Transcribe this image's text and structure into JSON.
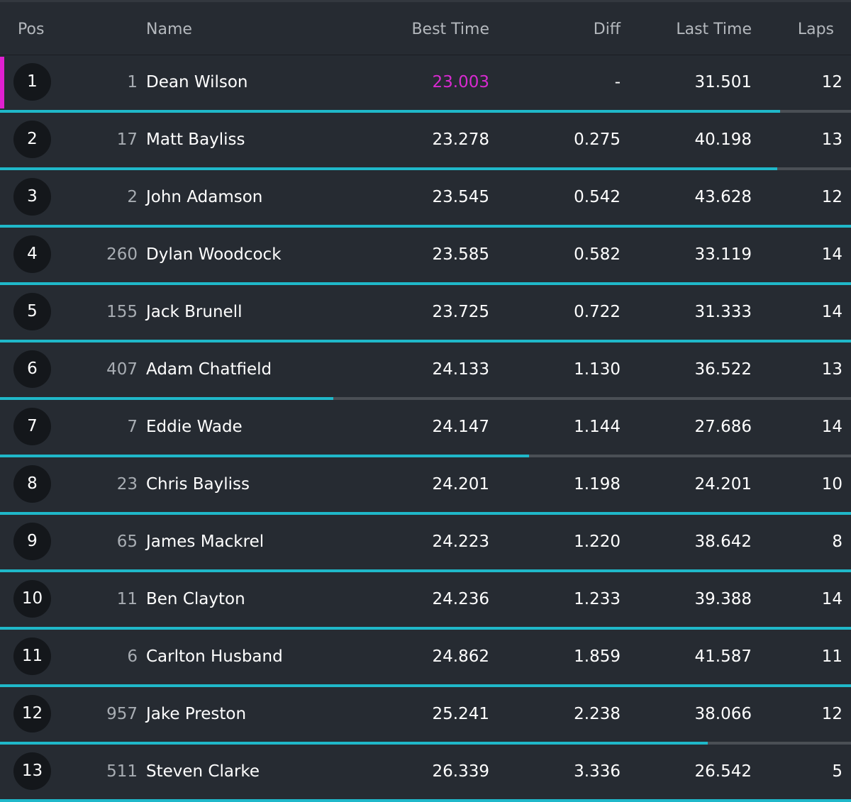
{
  "header": {
    "pos": "Pos",
    "name": "Name",
    "best_time": "Best Time",
    "diff": "Diff",
    "last_time": "Last Time",
    "laps": "Laps"
  },
  "colors": {
    "background": "#1a1e23",
    "row": "#262b32",
    "accent": "#1fb8c9",
    "fastest": "#d82ad0",
    "track": "#4a4f55"
  },
  "rows": [
    {
      "pos": "1",
      "num": "1",
      "name": "Dean Wilson",
      "best": "23.003",
      "diff": "-",
      "last": "31.501",
      "laps": "12",
      "fastest": true,
      "progress": 0.917
    },
    {
      "pos": "2",
      "num": "17",
      "name": "Matt Bayliss",
      "best": "23.278",
      "diff": "0.275",
      "last": "40.198",
      "laps": "13",
      "fastest": false,
      "progress": 0.913
    },
    {
      "pos": "3",
      "num": "2",
      "name": "John Adamson",
      "best": "23.545",
      "diff": "0.542",
      "last": "43.628",
      "laps": "12",
      "fastest": false,
      "progress": 1.0
    },
    {
      "pos": "4",
      "num": "260",
      "name": "Dylan Woodcock",
      "best": "23.585",
      "diff": "0.582",
      "last": "33.119",
      "laps": "14",
      "fastest": false,
      "progress": 1.0
    },
    {
      "pos": "5",
      "num": "155",
      "name": "Jack Brunell",
      "best": "23.725",
      "diff": "0.722",
      "last": "31.333",
      "laps": "14",
      "fastest": false,
      "progress": 1.0
    },
    {
      "pos": "6",
      "num": "407",
      "name": "Adam Chatfield",
      "best": "24.133",
      "diff": "1.130",
      "last": "36.522",
      "laps": "13",
      "fastest": false,
      "progress": 0.392
    },
    {
      "pos": "7",
      "num": "7",
      "name": "Eddie Wade",
      "best": "24.147",
      "diff": "1.144",
      "last": "27.686",
      "laps": "14",
      "fastest": false,
      "progress": 0.622
    },
    {
      "pos": "8",
      "num": "23",
      "name": "Chris Bayliss",
      "best": "24.201",
      "diff": "1.198",
      "last": "24.201",
      "laps": "10",
      "fastest": false,
      "progress": 1.0
    },
    {
      "pos": "9",
      "num": "65",
      "name": "James Mackrel",
      "best": "24.223",
      "diff": "1.220",
      "last": "38.642",
      "laps": "8",
      "fastest": false,
      "progress": 1.0
    },
    {
      "pos": "10",
      "num": "11",
      "name": "Ben Clayton",
      "best": "24.236",
      "diff": "1.233",
      "last": "39.388",
      "laps": "14",
      "fastest": false,
      "progress": 1.0
    },
    {
      "pos": "11",
      "num": "6",
      "name": "Carlton Husband",
      "best": "24.862",
      "diff": "1.859",
      "last": "41.587",
      "laps": "11",
      "fastest": false,
      "progress": 1.0
    },
    {
      "pos": "12",
      "num": "957",
      "name": "Jake Preston",
      "best": "25.241",
      "diff": "2.238",
      "last": "38.066",
      "laps": "12",
      "fastest": false,
      "progress": 0.832
    },
    {
      "pos": "13",
      "num": "511",
      "name": "Steven Clarke",
      "best": "26.339",
      "diff": "3.336",
      "last": "26.542",
      "laps": "5",
      "fastest": false,
      "progress": 1.0
    }
  ]
}
